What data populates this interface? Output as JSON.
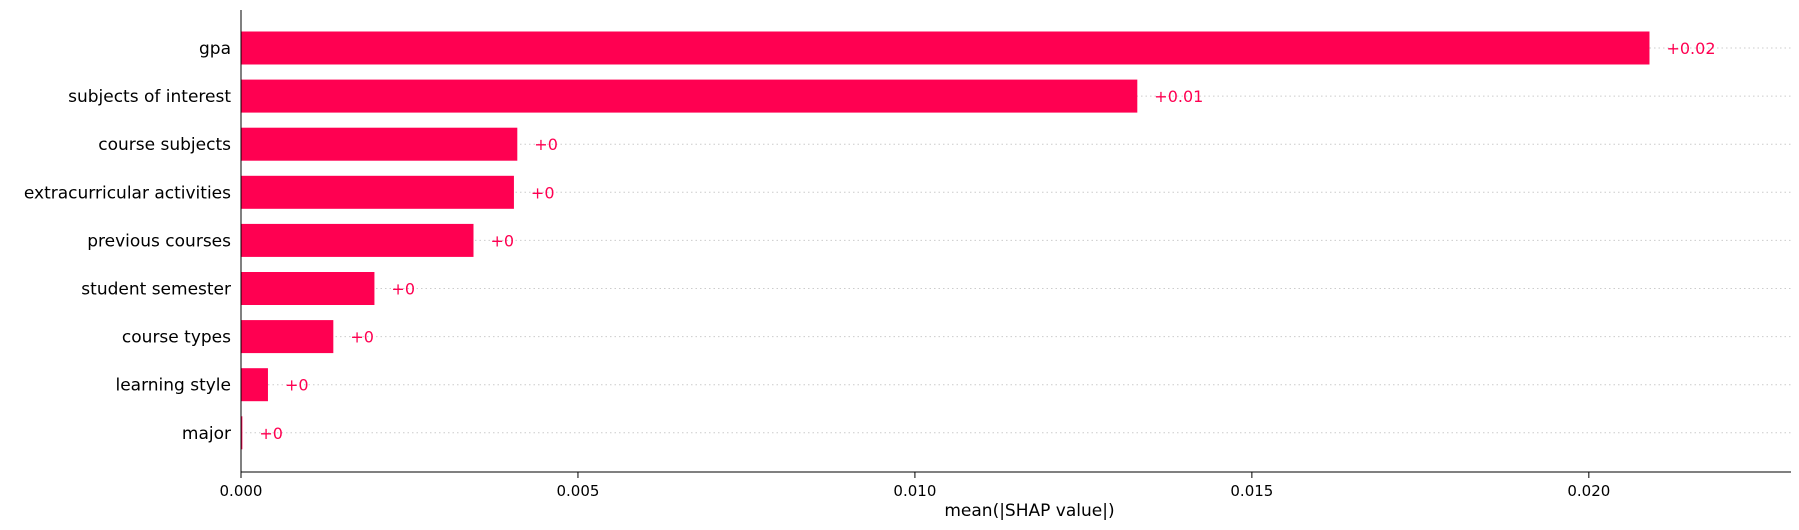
{
  "chart_data": {
    "type": "bar",
    "orientation": "horizontal",
    "title": "",
    "xlabel": "mean(|SHAP value|)",
    "ylabel": "",
    "xlim": [
      0,
      0.023
    ],
    "xticks": [
      "0.000",
      "0.005",
      "0.010",
      "0.015",
      "0.020"
    ],
    "xtick_values": [
      0,
      0.005,
      0.01,
      0.015,
      0.02
    ],
    "categories": [
      "gpa",
      "subjects of interest",
      "course subjects",
      "extracurricular activities",
      "previous courses",
      "student semester",
      "course types",
      "learning style",
      "major"
    ],
    "values": [
      0.0209,
      0.0133,
      0.0041,
      0.00405,
      0.00345,
      0.00198,
      0.00137,
      0.0004,
      2e-05
    ],
    "value_labels": [
      "+0.02",
      "+0.01",
      "+0",
      "+0",
      "+0",
      "+0",
      "+0",
      "+0",
      "+0"
    ],
    "bar_color": "#ff0051",
    "label_color": "#ff0051",
    "gridlines": "dotted horizontal per row",
    "legend": "none"
  }
}
